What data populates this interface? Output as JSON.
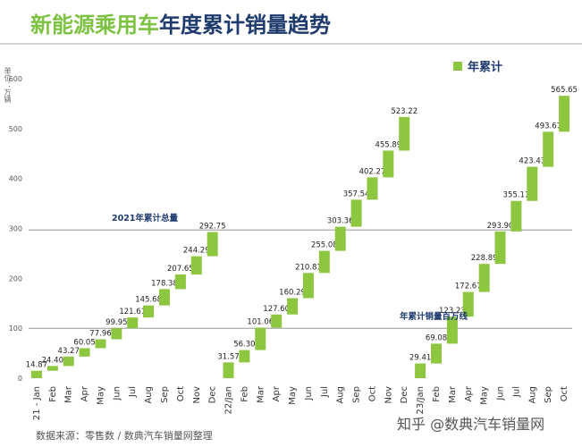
{
  "title": {
    "part1": "新能源乘用车",
    "part2": "年度累计销量趋势"
  },
  "unit_label": "单位：万辆",
  "legend_label": "年累计",
  "source_text": "数据来源：零售数 / 数典汽车销量网整理",
  "watermark_text": "知乎 @数典汽车销量网",
  "colors": {
    "bar": "#8dc63f",
    "title_green": "#7dc242",
    "title_navy": "#1f3b6e",
    "refline": "#888888"
  },
  "chart_data": {
    "type": "bar",
    "subtype": "waterfall",
    "ylim": [
      0,
      600
    ],
    "yticks": [
      "0",
      "100",
      "200",
      "300",
      "400",
      "500",
      "600"
    ],
    "grid": false,
    "legend_position": "top-right",
    "categories": [
      "21 - Jan",
      "Feb",
      "Mar",
      "Apr",
      "May",
      "Jun",
      "Jul",
      "Aug",
      "Sep",
      "Oct",
      "Nov",
      "Dec",
      "22/Jan",
      "Feb",
      "Mar",
      "Apr",
      "May",
      "Jun",
      "Jul",
      "Aug",
      "Sep",
      "Oct",
      "Nov",
      "Dec",
      "23/Jan",
      "Feb",
      "Mar",
      "Apr",
      "May",
      "Jun",
      "Jul",
      "Aug",
      "Sep",
      "Oct"
    ],
    "series": [
      {
        "name": "年累计",
        "values": [
          14.87,
          24.4,
          43.27,
          60.05,
          77.96,
          99.95,
          121.61,
          145.68,
          178.38,
          207.65,
          244.29,
          292.75,
          31.57,
          56.3,
          101.06,
          127.6,
          160.29,
          210.81,
          255.08,
          303.36,
          357.54,
          402.27,
          455.89,
          523.22,
          29.41,
          69.08,
          123.23,
          172.67,
          228.89,
          293.9,
          355.11,
          423.43,
          493.67,
          565.65
        ],
        "labels": [
          "14.87",
          "24.40",
          "43.27",
          "60.05",
          "77.96",
          "99.95",
          "121.61",
          "145.68",
          "178.38",
          "207.65",
          "244.29",
          "292.75",
          "31.57",
          "56.30",
          "101.06",
          "127.60",
          "160.29",
          "210.81",
          "255.08",
          "303.36",
          "357.54",
          "402.27",
          "455.89",
          "523.22",
          "29.41",
          "69.08",
          "123.23",
          "172.67",
          "228.89",
          "293.90",
          "355.11",
          "423.43",
          "493.67",
          "565.65"
        ]
      }
    ],
    "annotations": [
      {
        "text": "2021年累计总量",
        "y": 297
      },
      {
        "text": "年累计销量百万线",
        "y": 100
      }
    ]
  }
}
